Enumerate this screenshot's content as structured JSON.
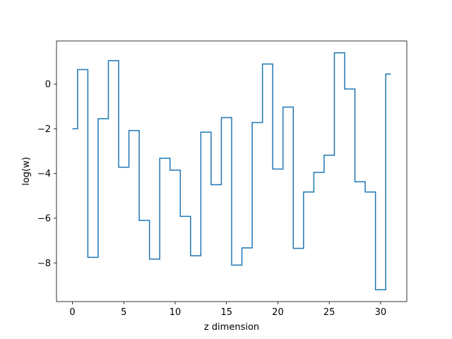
{
  "chart_data": {
    "type": "line",
    "step": "mid",
    "xlabel": "z dimension",
    "ylabel": "log(w)",
    "xlim": [
      -1.55,
      32.55
    ],
    "ylim": [
      -9.73,
      1.93
    ],
    "xticks": [
      0,
      5,
      10,
      15,
      20,
      25,
      30
    ],
    "yticks": [
      0,
      -2,
      -4,
      -6,
      -8
    ],
    "x": [
      0,
      1,
      2,
      3,
      4,
      5,
      6,
      7,
      8,
      9,
      10,
      11,
      12,
      13,
      14,
      15,
      16,
      17,
      18,
      19,
      20,
      21,
      22,
      23,
      24,
      25,
      26,
      27,
      28,
      29,
      30,
      31
    ],
    "series": [
      {
        "color": "#1f77b4",
        "values": [
          -2.0,
          0.65,
          -7.75,
          -1.55,
          1.05,
          -3.72,
          -2.08,
          -6.1,
          -7.83,
          -3.32,
          -3.85,
          -5.92,
          -7.68,
          -2.15,
          -4.5,
          -1.5,
          -8.1,
          -7.33,
          -1.72,
          0.9,
          -3.8,
          -1.03,
          -7.35,
          -4.83,
          -3.95,
          -3.18,
          1.4,
          -0.22,
          -4.37,
          -4.83,
          -9.2,
          0.45
        ]
      }
    ]
  }
}
